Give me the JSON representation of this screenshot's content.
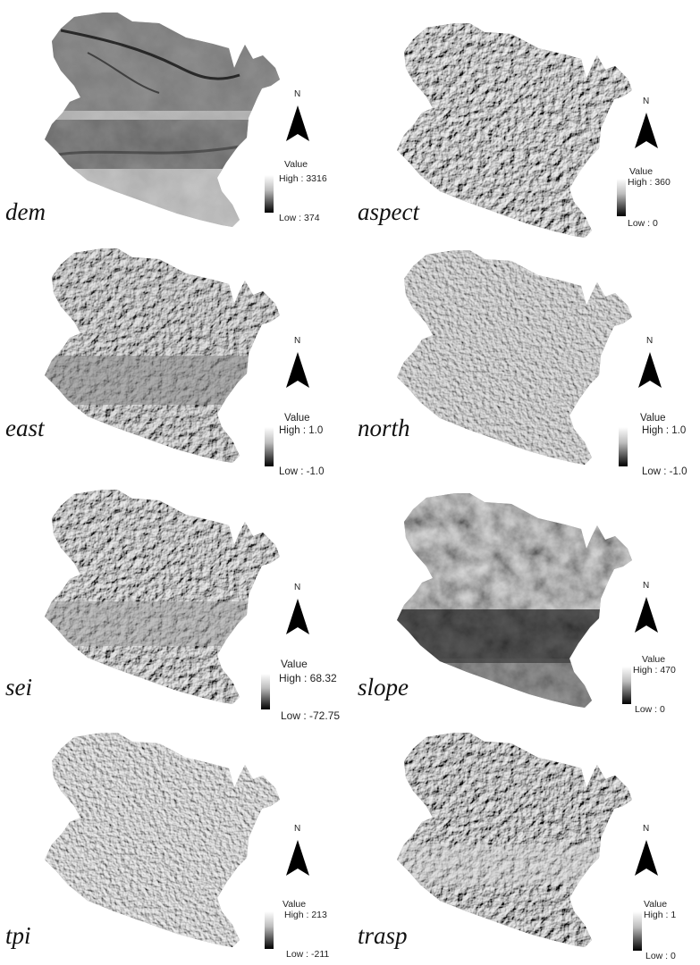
{
  "north_label": "N",
  "legend_title": "Value",
  "panels": [
    {
      "name": "dem",
      "high": "High : 3316",
      "low": "Low : 374"
    },
    {
      "name": "aspect",
      "high": "High : 360",
      "low": "Low : 0"
    },
    {
      "name": "east",
      "high": "High : 1.0",
      "low": "Low : -1.0"
    },
    {
      "name": "north",
      "high": "High : 1.0",
      "low": "Low : -1.0"
    },
    {
      "name": "sei",
      "high": "High : 68.32",
      "low": "Low : -72.75"
    },
    {
      "name": "slope",
      "high": "High : 470",
      "low": "Low : 0"
    },
    {
      "name": "tpi",
      "high": "High : 213",
      "low": "Low : -211"
    },
    {
      "name": "trasp",
      "high": "High : 1",
      "low": "Low : 0"
    }
  ]
}
